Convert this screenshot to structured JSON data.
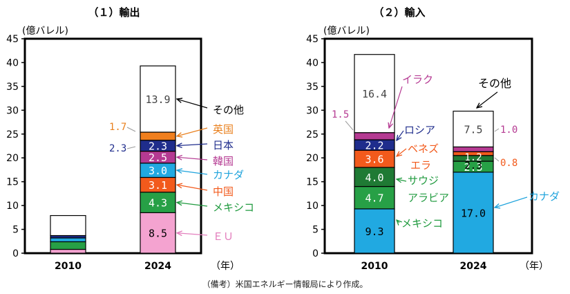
{
  "caption": "（備考）米国エネルギー情報局により作成。",
  "chart_data": [
    {
      "id": "exports",
      "type": "bar",
      "stacked": true,
      "title": "（１）輸出",
      "ylabel": "(億バレル)",
      "xlabel_unit": "（年）",
      "categories": [
        "2010",
        "2024"
      ],
      "ylim": [
        0,
        45
      ],
      "yticks": [
        0,
        5,
        10,
        15,
        20,
        25,
        30,
        35,
        40,
        45
      ],
      "series": [
        {
          "name": "ＥＵ",
          "color": "#f4a3d0",
          "label_color": "#e37fbd",
          "values": [
            0.8,
            8.5
          ],
          "labels": [
            "",
            "8.5"
          ]
        },
        {
          "name": "メキシコ",
          "color": "#27a046",
          "label_color": "#1f9a3e",
          "values": [
            1.6,
            4.3
          ],
          "labels": [
            "",
            "4.3"
          ]
        },
        {
          "name": "中国",
          "color": "#f25a1c",
          "label_color": "#f25a1c",
          "values": [
            0.0,
            3.1
          ],
          "labels": [
            "",
            "3.1"
          ]
        },
        {
          "name": "カナダ",
          "color": "#21a9e1",
          "label_color": "#1ea3dc",
          "values": [
            0.8,
            3.0
          ],
          "labels": [
            "",
            "3.0"
          ]
        },
        {
          "name": "韓国",
          "color": "#b53a92",
          "label_color": "#b53a92",
          "values": [
            0.0,
            2.5
          ],
          "labels": [
            "",
            "2.5"
          ]
        },
        {
          "name": "日本",
          "color": "#1f2d8c",
          "label_color": "#1f2d8c",
          "values": [
            0.5,
            2.3
          ],
          "labels": [
            "",
            "2.3"
          ]
        },
        {
          "name": "英国",
          "color": "#f07f1e",
          "label_color": "#e9801e",
          "values": [
            0.0,
            1.7
          ],
          "labels": [
            "",
            "1.7"
          ]
        },
        {
          "name": "その他",
          "color": "#ffffff",
          "label_color": "#000000",
          "values": [
            4.2,
            13.9
          ],
          "labels": [
            "",
            "13.9"
          ]
        }
      ]
    },
    {
      "id": "imports",
      "type": "bar",
      "stacked": true,
      "title": "（２）輸入",
      "ylabel": "(億バレル)",
      "xlabel_unit": "（年）",
      "categories": [
        "2010",
        "2024"
      ],
      "ylim": [
        0,
        45
      ],
      "yticks": [
        0,
        5,
        10,
        15,
        20,
        25,
        30,
        35,
        40,
        45
      ],
      "series": [
        {
          "name": "カナダ",
          "color": "#21a9e1",
          "label_color": "#1ea3dc",
          "values": [
            9.3,
            17.0
          ],
          "labels": [
            "9.3",
            "17.0"
          ]
        },
        {
          "name": "メキシコ",
          "color": "#27a046",
          "label_color": "#1f9a3e",
          "values": [
            4.7,
            2.3
          ],
          "labels": [
            "4.7",
            "2.3"
          ]
        },
        {
          "name": "サウジアラビア",
          "color": "#1f7a34",
          "label_color": "#1f9a3e",
          "values": [
            4.0,
            1.2
          ],
          "labels": [
            "4.0",
            "1.2"
          ]
        },
        {
          "name": "ベネズエラ",
          "color": "#f25a1c",
          "label_color": "#f25a1c",
          "values": [
            3.6,
            0.8
          ],
          "labels": [
            "3.6",
            "0.8"
          ]
        },
        {
          "name": "ロシア",
          "color": "#1f2d8c",
          "label_color": "#1f2d8c",
          "values": [
            2.2,
            0.0
          ],
          "labels": [
            "2.2",
            ""
          ]
        },
        {
          "name": "イラク",
          "color": "#b53a92",
          "label_color": "#b53a92",
          "values": [
            1.5,
            1.0
          ],
          "labels": [
            "1.5",
            "1.0"
          ]
        },
        {
          "name": "その他",
          "color": "#ffffff",
          "label_color": "#000000",
          "values": [
            16.4,
            7.5
          ],
          "labels": [
            "16.4",
            "7.5"
          ]
        }
      ]
    }
  ]
}
